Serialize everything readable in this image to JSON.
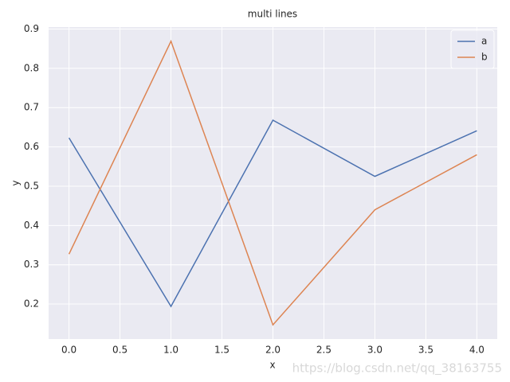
{
  "chart_data": {
    "type": "line",
    "title": "multi lines",
    "x_label": "x",
    "y_label": "y",
    "x": [
      0,
      1,
      2,
      3,
      4
    ],
    "series": [
      {
        "name": "a",
        "color": "#4c72b0",
        "values": [
          0.623,
          0.194,
          0.668,
          0.525,
          0.641
        ]
      },
      {
        "name": "b",
        "color": "#dd8452",
        "values": [
          0.327,
          0.869,
          0.147,
          0.44,
          0.58
        ]
      }
    ],
    "xlim": [
      -0.2,
      4.2
    ],
    "xticks": [
      {
        "value": 0,
        "label": "0.0"
      },
      {
        "value": 0.5,
        "label": "0.5"
      },
      {
        "value": 1,
        "label": "1.0"
      },
      {
        "value": 1.5,
        "label": "1.5"
      },
      {
        "value": 2,
        "label": "2.0"
      },
      {
        "value": 2.5,
        "label": "2.5"
      },
      {
        "value": 3,
        "label": "3.0"
      },
      {
        "value": 3.5,
        "label": "3.5"
      },
      {
        "value": 4,
        "label": "4.0"
      }
    ],
    "ylim": [
      0.111,
      0.905
    ],
    "yticks": [
      0.2,
      0.3,
      0.4,
      0.5,
      0.6,
      0.7,
      0.8,
      0.9
    ],
    "grid": true,
    "legend": "upper right",
    "watermark": "https://blog.csdn.net/qq_38163755"
  }
}
